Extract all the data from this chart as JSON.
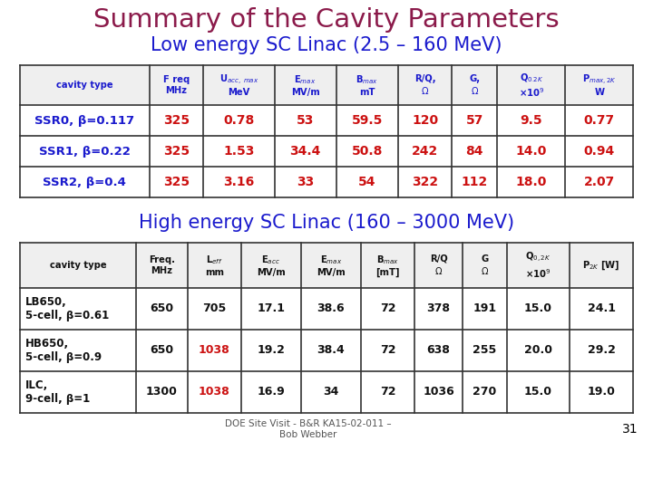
{
  "title": "Summary of the Cavity Parameters",
  "title_color": "#8B1A4A",
  "subtitle1": "Low energy SC Linac (2.5 – 160 MeV)",
  "subtitle2": "High energy SC Linac (160 – 3000 MeV)",
  "subtitle_color": "#1A1ACD",
  "footer": "DOE Site Visit - B&R KA15-02-011 –\nBob Webber",
  "page_num": "31",
  "low_energy": {
    "rows": [
      {
        "name": "SSR0, β=0.117",
        "name_color": "#1A1ACD",
        "values": [
          "325",
          "0.78",
          "53",
          "59.5",
          "120",
          "57",
          "9.5",
          "0.77"
        ],
        "val_color": "#CC1111"
      },
      {
        "name": "SSR1, β=0.22",
        "name_color": "#1A1ACD",
        "values": [
          "325",
          "1.53",
          "34.4",
          "50.8",
          "242",
          "84",
          "14.0",
          "0.94"
        ],
        "val_color": "#CC1111"
      },
      {
        "name": "SSR2, β=0.4",
        "name_color": "#1A1ACD",
        "values": [
          "325",
          "3.16",
          "33",
          "54",
          "322",
          "112",
          "18.0",
          "2.07"
        ],
        "val_color": "#CC1111"
      }
    ]
  },
  "high_energy": {
    "rows": [
      {
        "name": "LB650,\n5-cell, β=0.61",
        "values": [
          "650",
          "705",
          "17.1",
          "38.6",
          "72",
          "378",
          "191",
          "15.0",
          "24.1"
        ],
        "leff_red": false
      },
      {
        "name": "HB650,\n5-cell, β=0.9",
        "values": [
          "650",
          "1038",
          "19.2",
          "38.4",
          "72",
          "638",
          "255",
          "20.0",
          "29.2"
        ],
        "leff_red": true
      },
      {
        "name": "ILC,\n9-cell, β=1",
        "values": [
          "1300",
          "1038",
          "16.9",
          "34",
          "72",
          "1036",
          "270",
          "15.0",
          "19.0"
        ],
        "leff_red": true
      }
    ]
  },
  "bg_color": "#FFFFFF",
  "grid_color": "#333333",
  "header_text_color": "#1A1ACD",
  "data_text_color": "#111111"
}
